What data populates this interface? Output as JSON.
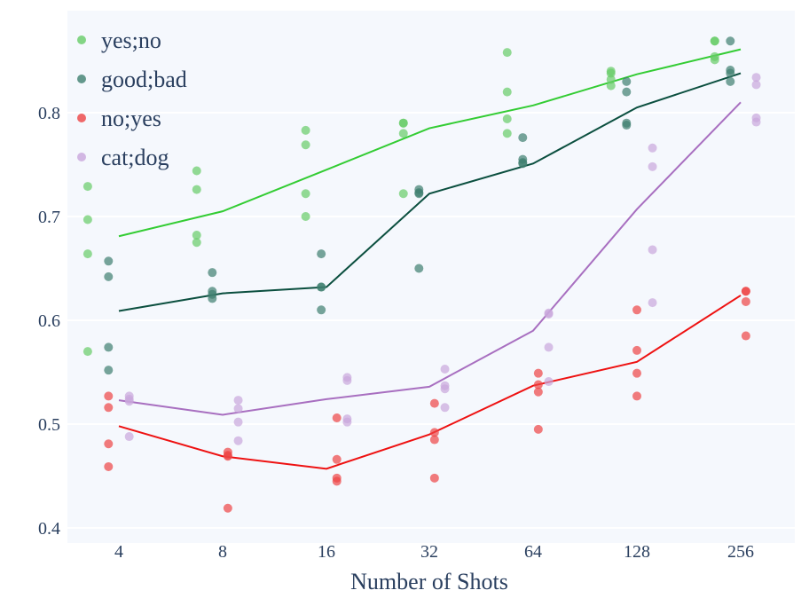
{
  "chart_data": {
    "type": "scatter",
    "title": "",
    "xlabel": "Number of Shots",
    "ylabel": "",
    "x_scale": "log2",
    "categories": [
      "4",
      "8",
      "16",
      "32",
      "64",
      "128",
      "256"
    ],
    "x": [
      4,
      8,
      16,
      32,
      64,
      128,
      256
    ],
    "ylim": [
      0.39,
      0.89
    ],
    "yticks": [
      0.4,
      0.5,
      0.6,
      0.7,
      0.8
    ],
    "ytick_labels": [
      "0.4",
      "0.5",
      "0.6",
      "0.7",
      "0.8"
    ],
    "grid": true,
    "legend_position": "top-left",
    "background_color": "#f5f8fd",
    "series": [
      {
        "name": "yes;no",
        "line_color": "#33cc33",
        "point_color": "#66cc66",
        "line": [
          0.681,
          0.705,
          0.745,
          0.785,
          0.807,
          0.837,
          0.861
        ],
        "points": [
          [
            [
              -0.3,
              0.729
            ],
            [
              -0.3,
              0.697
            ],
            [
              -0.3,
              0.664
            ],
            [
              -0.3,
              0.57
            ]
          ],
          [
            [
              -0.25,
              0.744
            ],
            [
              -0.25,
              0.726
            ],
            [
              -0.25,
              0.682
            ],
            [
              -0.25,
              0.675
            ]
          ],
          [
            [
              -0.2,
              0.783
            ],
            [
              -0.2,
              0.769
            ],
            [
              -0.2,
              0.722
            ],
            [
              -0.2,
              0.7
            ]
          ],
          [
            [
              -0.25,
              0.79
            ],
            [
              -0.25,
              0.79
            ],
            [
              -0.25,
              0.78
            ],
            [
              -0.25,
              0.722
            ]
          ],
          [
            [
              -0.25,
              0.858
            ],
            [
              -0.25,
              0.82
            ],
            [
              -0.25,
              0.794
            ],
            [
              -0.25,
              0.78
            ]
          ],
          [
            [
              -0.25,
              0.84
            ],
            [
              -0.25,
              0.838
            ],
            [
              -0.25,
              0.832
            ],
            [
              -0.25,
              0.826
            ]
          ],
          [
            [
              -0.25,
              0.869
            ],
            [
              -0.25,
              0.869
            ],
            [
              -0.25,
              0.854
            ],
            [
              -0.25,
              0.851
            ]
          ]
        ]
      },
      {
        "name": "good;bad",
        "line_color": "#0b4f3f",
        "point_color": "#3f7f6f",
        "line": [
          0.609,
          0.626,
          0.632,
          0.722,
          0.751,
          0.805,
          0.838
        ],
        "points": [
          [
            [
              -0.1,
              0.657
            ],
            [
              -0.1,
              0.642
            ],
            [
              -0.1,
              0.574
            ],
            [
              -0.1,
              0.552
            ]
          ],
          [
            [
              -0.1,
              0.646
            ],
            [
              -0.1,
              0.628
            ],
            [
              -0.1,
              0.625
            ],
            [
              -0.1,
              0.621
            ]
          ],
          [
            [
              -0.05,
              0.664
            ],
            [
              -0.05,
              0.632
            ],
            [
              -0.05,
              0.632
            ],
            [
              -0.05,
              0.61
            ]
          ],
          [
            [
              -0.1,
              0.726
            ],
            [
              -0.1,
              0.723
            ],
            [
              -0.1,
              0.722
            ],
            [
              -0.1,
              0.65
            ]
          ],
          [
            [
              -0.1,
              0.776
            ],
            [
              -0.1,
              0.755
            ],
            [
              -0.1,
              0.752
            ],
            [
              -0.1,
              0.751
            ]
          ],
          [
            [
              -0.1,
              0.83
            ],
            [
              -0.1,
              0.82
            ],
            [
              -0.1,
              0.79
            ],
            [
              -0.1,
              0.788
            ]
          ],
          [
            [
              -0.1,
              0.869
            ],
            [
              -0.1,
              0.841
            ],
            [
              -0.1,
              0.838
            ],
            [
              -0.1,
              0.83
            ]
          ]
        ]
      },
      {
        "name": "no;yes",
        "line_color": "#ee1111",
        "point_color": "#ee4444",
        "line": [
          0.498,
          0.469,
          0.457,
          0.49,
          0.537,
          0.56,
          0.624
        ],
        "points": [
          [
            [
              -0.1,
              0.527
            ],
            [
              -0.1,
              0.516
            ],
            [
              -0.1,
              0.481
            ],
            [
              -0.1,
              0.459
            ]
          ],
          [
            [
              0.05,
              0.473
            ],
            [
              0.05,
              0.47
            ],
            [
              0.05,
              0.469
            ],
            [
              0.05,
              0.419
            ]
          ],
          [
            [
              0.1,
              0.506
            ],
            [
              0.1,
              0.466
            ],
            [
              0.1,
              0.448
            ],
            [
              0.1,
              0.445
            ]
          ],
          [
            [
              0.05,
              0.52
            ],
            [
              0.05,
              0.492
            ],
            [
              0.05,
              0.485
            ],
            [
              0.05,
              0.448
            ]
          ],
          [
            [
              0.05,
              0.549
            ],
            [
              0.05,
              0.538
            ],
            [
              0.05,
              0.531
            ],
            [
              0.05,
              0.495
            ]
          ],
          [
            [
              0.0,
              0.61
            ],
            [
              0.0,
              0.571
            ],
            [
              0.0,
              0.549
            ],
            [
              0.0,
              0.527
            ]
          ],
          [
            [
              0.05,
              0.628
            ],
            [
              0.05,
              0.628
            ],
            [
              0.05,
              0.618
            ],
            [
              0.05,
              0.585
            ]
          ]
        ]
      },
      {
        "name": "cat;dog",
        "line_color": "#a86fc0",
        "point_color": "#c9a6dc",
        "line": [
          0.523,
          0.509,
          0.524,
          0.536,
          0.59,
          0.707,
          0.81
        ],
        "points": [
          [
            [
              0.1,
              0.527
            ],
            [
              0.1,
              0.524
            ],
            [
              0.1,
              0.522
            ],
            [
              0.1,
              0.488
            ]
          ],
          [
            [
              0.15,
              0.523
            ],
            [
              0.15,
              0.515
            ],
            [
              0.15,
              0.502
            ],
            [
              0.15,
              0.484
            ]
          ],
          [
            [
              0.2,
              0.545
            ],
            [
              0.2,
              0.542
            ],
            [
              0.2,
              0.505
            ],
            [
              0.2,
              0.502
            ]
          ],
          [
            [
              0.15,
              0.553
            ],
            [
              0.15,
              0.537
            ],
            [
              0.15,
              0.534
            ],
            [
              0.15,
              0.516
            ]
          ],
          [
            [
              0.15,
              0.607
            ],
            [
              0.15,
              0.606
            ],
            [
              0.15,
              0.574
            ],
            [
              0.15,
              0.541
            ]
          ],
          [
            [
              0.15,
              0.766
            ],
            [
              0.15,
              0.748
            ],
            [
              0.15,
              0.668
            ],
            [
              0.15,
              0.617
            ]
          ],
          [
            [
              0.15,
              0.834
            ],
            [
              0.15,
              0.827
            ],
            [
              0.15,
              0.795
            ],
            [
              0.15,
              0.791
            ]
          ]
        ]
      }
    ]
  }
}
